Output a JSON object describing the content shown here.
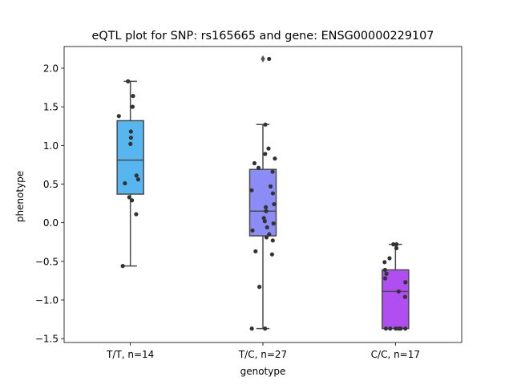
{
  "chart_data": {
    "type": "box",
    "title": "eQTL plot for SNP: rs165665 and gene: ENSG00000229107",
    "xlabel": "genotype",
    "ylabel": "phenotype",
    "ylim": [
      -1.55,
      2.28
    ],
    "yticks": [
      -1.5,
      -1.0,
      -0.5,
      0.0,
      0.5,
      1.0,
      1.5,
      2.0
    ],
    "ytick_labels": [
      "−1.5",
      "−1.0",
      "−0.5",
      "0.0",
      "0.5",
      "1.0",
      "1.5",
      "2.0"
    ],
    "grid": false,
    "categories": [
      "T/T, n=14",
      "T/C, n=27",
      "C/C, n=17"
    ],
    "colors": [
      "#57b6f0",
      "#8b8cf6",
      "#b04ef2"
    ],
    "box_edge_color": "#4a4a4a",
    "point_color": "#333333",
    "boxes": [
      {
        "category": "T/T, n=14",
        "q1": 0.37,
        "median": 0.81,
        "q3": 1.32,
        "whisker_low": -0.56,
        "whisker_high": 1.83,
        "outliers": []
      },
      {
        "category": "T/C, n=27",
        "q1": -0.17,
        "median": 0.15,
        "q3": 0.69,
        "whisker_low": -1.37,
        "whisker_high": 1.27,
        "outliers": [
          2.12
        ]
      },
      {
        "category": "C/C, n=17",
        "q1": -1.37,
        "median": -0.89,
        "q3": -0.61,
        "whisker_low": -1.37,
        "whisker_high": -0.28,
        "outliers": []
      }
    ],
    "points": [
      [
        -0.56,
        0.11,
        0.29,
        0.33,
        0.51,
        0.56,
        0.61,
        1.02,
        1.1,
        1.18,
        1.38,
        1.5,
        1.64,
        1.83
      ],
      [
        -1.37,
        -1.37,
        -0.83,
        -0.41,
        -0.37,
        -0.23,
        -0.19,
        -0.15,
        -0.1,
        -0.06,
        -0.01,
        0.02,
        0.06,
        0.15,
        0.2,
        0.24,
        0.38,
        0.42,
        0.47,
        0.66,
        0.71,
        0.77,
        0.83,
        0.89,
        0.96,
        1.27,
        2.12
      ],
      [
        -1.37,
        -1.37,
        -1.37,
        -1.37,
        -1.37,
        -1.37,
        -0.96,
        -0.89,
        -0.77,
        -0.72,
        -0.66,
        -0.61,
        -0.51,
        -0.46,
        -0.33,
        -0.28,
        -0.28
      ]
    ]
  }
}
